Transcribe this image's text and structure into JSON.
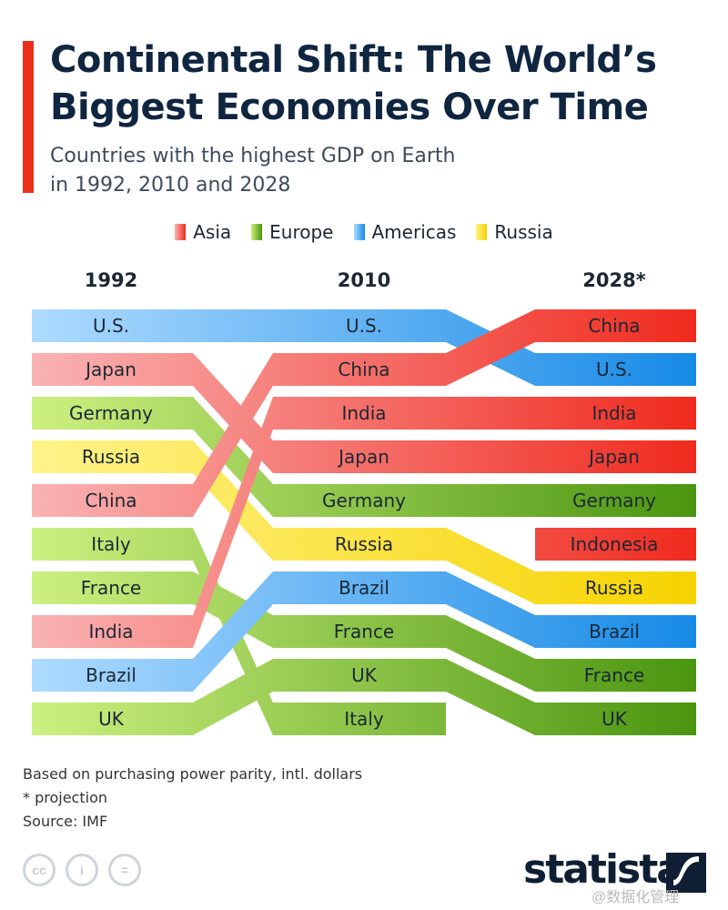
{
  "title": "Continental Shift: The World’s Biggest Economies Over Time",
  "subtitle_line1": "Countries with the highest GDP on Earth",
  "subtitle_line2": "in 1992, 2010 and 2028",
  "legend": [
    {
      "label": "Asia",
      "color": "#f0362a"
    },
    {
      "label": "Europe",
      "color": "#5aa51a"
    },
    {
      "label": "Americas",
      "color": "#2a98f0"
    },
    {
      "label": "Russia",
      "color": "#f7dc1e"
    }
  ],
  "chart_data": {
    "type": "bump",
    "columns": [
      "1992",
      "2010",
      "2028*"
    ],
    "rankings": {
      "1992": [
        "U.S.",
        "Japan",
        "Germany",
        "Russia",
        "China",
        "Italy",
        "France",
        "India",
        "Brazil",
        "UK"
      ],
      "2010": [
        "U.S.",
        "China",
        "India",
        "Japan",
        "Germany",
        "Russia",
        "Brazil",
        "France",
        "UK",
        "Italy"
      ],
      "2028*": [
        "China",
        "U.S.",
        "India",
        "Japan",
        "Germany",
        "Indonesia",
        "Russia",
        "Brazil",
        "France",
        "UK"
      ]
    },
    "regions": {
      "U.S.": "Americas",
      "Japan": "Asia",
      "Germany": "Europe",
      "Russia": "Russia",
      "China": "Asia",
      "Italy": "Europe",
      "France": "Europe",
      "India": "Asia",
      "Brazil": "Americas",
      "UK": "Europe",
      "Indonesia": "Asia"
    },
    "region_gradients": {
      "Asia": [
        "#f9b3b3",
        "#f02a1e"
      ],
      "Europe": [
        "#cdf080",
        "#4a950f"
      ],
      "Americas": [
        "#aedbff",
        "#168ae6"
      ],
      "Russia": [
        "#fff38a",
        "#f6d300"
      ]
    }
  },
  "notes": [
    "Based on purchasing power parity, intl. dollars",
    "* projection",
    "Source: IMF"
  ],
  "logo": "statista",
  "watermark": "@数据化管理"
}
